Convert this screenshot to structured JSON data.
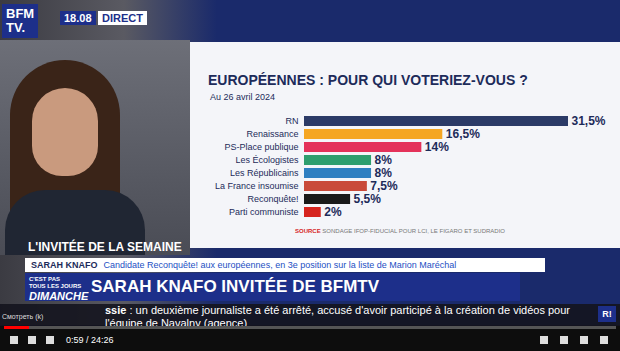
{
  "chart_data": {
    "type": "bar",
    "orientation": "horizontal",
    "title": "EUROPÉENNES : POUR QUI VOTERIEZ-VOUS ?",
    "subtitle": "Au 26 avril 2024",
    "source": "SONDAGE IFOP-FIDUCIAL POUR LCI, LE FIGARO ET SUDRADIO",
    "source_label": "SOURCE",
    "categories": [
      "RN",
      "Renaissance",
      "PS-Place publique",
      "Les Écologistes",
      "Les Républicains",
      "La France insoumise",
      "Reconquête!",
      "Parti communiste"
    ],
    "values": [
      31.5,
      16.5,
      14,
      8,
      8,
      7.5,
      5.5,
      2
    ],
    "value_labels": [
      "31,5%",
      "16,5%",
      "14%",
      "8%",
      "8%",
      "7,5%",
      "5,5%",
      "2%"
    ],
    "colors": [
      "#2b3a67",
      "#f5a623",
      "#e4325a",
      "#2e9e6e",
      "#2f7fc1",
      "#c94a3a",
      "#1a1a1a",
      "#d6241e"
    ],
    "xlim": [
      0,
      31.5
    ],
    "data_labels": true,
    "tick_labels": "y",
    "grid": false
  },
  "screen": {
    "logo": [
      "BFM",
      "TV."
    ],
    "time": "18.08",
    "live": "DIRECT",
    "lower_third": {
      "kicker": "L'INVITÉE DE LA SEMAINE",
      "name": "SARAH KNAFO",
      "description": "Candidate Reconquête! aux européennes, en 3e position sur la liste de Marion Maréchal",
      "show": [
        "C'EST PAS",
        "TOUS LES JOURS",
        "DIMANCHE"
      ],
      "headline": "SARAH KNAFO INVITÉE DE BFMTV"
    },
    "ticker": {
      "lead": "ssie",
      "text": " : un deuxième journaliste a été arrêté, accusé d'avoir participé à la création de vidéos pour l'équipe de Navalny (agence)"
    },
    "icon": "R!",
    "player": {
      "tooltip": "Смотреть (k)",
      "time": "0:59 / 24:26"
    }
  }
}
